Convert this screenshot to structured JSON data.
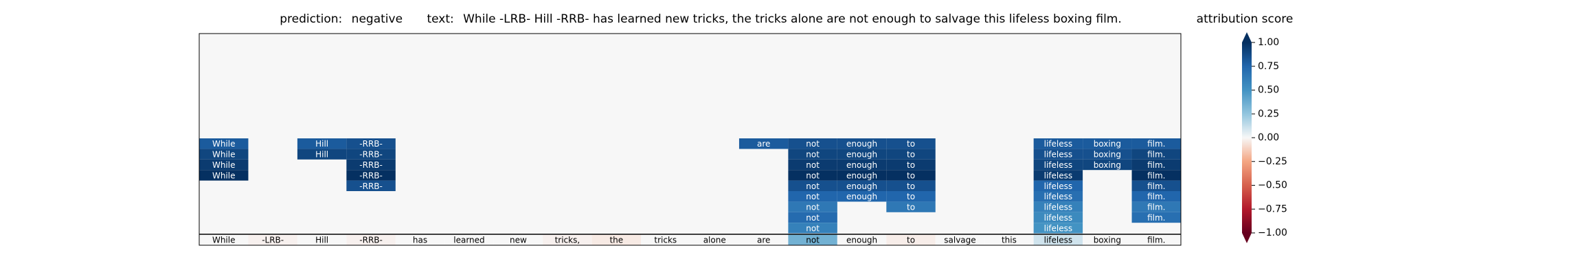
{
  "chart_data": {
    "type": "heatmap",
    "title_prefix": "prediction:",
    "prediction": "negative",
    "text_prefix": "text:",
    "text": "While -LRB- Hill -RRB- has learned new tricks, the tricks alone are not enough to salvage this lifeless boxing film.",
    "tokens": [
      "While",
      "-LRB-",
      "Hill",
      "-RRB-",
      "has",
      "learned",
      "new",
      "tricks,",
      "the",
      "tricks",
      "alone",
      "are",
      "not",
      "enough",
      "to",
      "salvage",
      "this",
      "lifeless",
      "boxing",
      "film."
    ],
    "token_scores": [
      0.0,
      -0.02,
      0.0,
      -0.02,
      0.0,
      0.0,
      0.0,
      -0.02,
      -0.04,
      0.0,
      0.0,
      0.0,
      0.35,
      0.0,
      -0.03,
      0.0,
      0.0,
      0.1,
      0.0,
      0.0
    ],
    "rows": [
      [
        0.8,
        null,
        0.8,
        0.85,
        null,
        null,
        null,
        null,
        null,
        null,
        null,
        0.8,
        0.85,
        0.85,
        0.85,
        null,
        null,
        0.8,
        0.8,
        0.8
      ],
      [
        0.9,
        null,
        0.9,
        0.9,
        null,
        null,
        null,
        null,
        null,
        null,
        null,
        null,
        0.9,
        0.9,
        0.9,
        null,
        null,
        0.85,
        0.85,
        0.9
      ],
      [
        0.95,
        null,
        null,
        0.95,
        null,
        null,
        null,
        null,
        null,
        null,
        null,
        null,
        0.95,
        0.95,
        0.95,
        null,
        null,
        0.9,
        0.9,
        0.95
      ],
      [
        1.0,
        null,
        null,
        1.0,
        null,
        null,
        null,
        null,
        null,
        null,
        null,
        null,
        1.0,
        1.0,
        1.0,
        null,
        null,
        0.95,
        null,
        1.0
      ],
      [
        null,
        null,
        null,
        0.85,
        null,
        null,
        null,
        null,
        null,
        null,
        null,
        null,
        0.85,
        0.85,
        0.85,
        null,
        null,
        0.75,
        null,
        0.85
      ],
      [
        null,
        null,
        null,
        null,
        null,
        null,
        null,
        null,
        null,
        null,
        null,
        null,
        0.75,
        0.75,
        0.75,
        null,
        null,
        0.7,
        null,
        0.75
      ],
      [
        null,
        null,
        null,
        null,
        null,
        null,
        null,
        null,
        null,
        null,
        null,
        null,
        0.65,
        null,
        0.65,
        null,
        null,
        0.6,
        null,
        0.65
      ],
      [
        null,
        null,
        null,
        null,
        null,
        null,
        null,
        null,
        null,
        null,
        null,
        null,
        0.72,
        null,
        null,
        null,
        null,
        0.55,
        null,
        0.7
      ],
      [
        null,
        null,
        null,
        null,
        null,
        null,
        null,
        null,
        null,
        null,
        null,
        null,
        0.6,
        null,
        null,
        null,
        null,
        0.5,
        null,
        null
      ]
    ],
    "colorbar": {
      "label": "attribution score",
      "min": -1.0,
      "max": 1.0,
      "ticks": [
        1.0,
        0.75,
        0.5,
        0.25,
        0.0,
        -0.25,
        -0.5,
        -0.75,
        -1.0
      ],
      "tick_labels": [
        "1.00",
        "0.75",
        "0.50",
        "0.25",
        "0.00",
        "−0.25",
        "−0.50",
        "−0.75",
        "−1.00"
      ],
      "colormap": "RdBu"
    },
    "colors": {
      "empty_row": "#f7f7f7",
      "axis": "#000000"
    }
  }
}
